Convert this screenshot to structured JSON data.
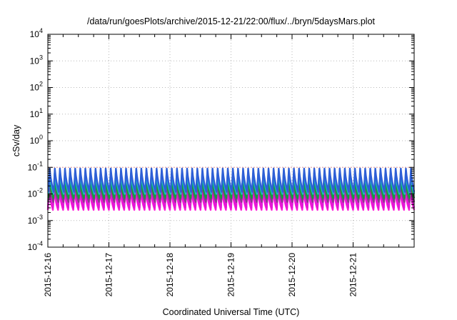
{
  "chart_data": {
    "type": "line",
    "title": "/data/run/goesPlots/archive/2015-12-21/22:00/flux/../bryn/5daysMars.plot",
    "xlabel": "Coordinated Universal Time (UTC)",
    "ylabel": "cSv/day",
    "yscale": "log",
    "ylim": [
      0.0001,
      10000
    ],
    "y_ticks": [
      {
        "base": "10",
        "exp": "-4"
      },
      {
        "base": "10",
        "exp": "-3"
      },
      {
        "base": "10",
        "exp": "-2"
      },
      {
        "base": "10",
        "exp": "-1"
      },
      {
        "base": "10",
        "exp": "0"
      },
      {
        "base": "10",
        "exp": "1"
      },
      {
        "base": "10",
        "exp": "2"
      },
      {
        "base": "10",
        "exp": "3"
      },
      {
        "base": "10",
        "exp": "4"
      }
    ],
    "x_range": [
      "2015-12-16T00:00",
      "2015-12-22T00:00"
    ],
    "x_tick_labels": [
      "2015-12-16",
      "2015-12-17",
      "2015-12-18",
      "2015-12-19",
      "2015-12-20",
      "2015-12-21"
    ],
    "grid": true,
    "legend": "none",
    "pattern": {
      "period_hours": 2,
      "description": "periodic sawtooth dose-rate traces; each cycle peaks then decays",
      "series": [
        {
          "color": "#2e5fd6",
          "peak": 0.09,
          "trough": 0.012
        },
        {
          "color": "#1fb7c9",
          "peak": 0.06,
          "trough": 0.01
        },
        {
          "color": "#159e3b",
          "peak": 0.035,
          "trough": 0.007
        },
        {
          "color": "#8a3a8c",
          "peak": 0.028,
          "trough": 0.005
        },
        {
          "color": "#e317d6",
          "peak": 0.02,
          "trough": 0.003
        },
        {
          "color": "#ff1ad9",
          "peak": 0.015,
          "trough": 0.0025
        }
      ]
    },
    "colors": {
      "grid": "#b8b8b8",
      "axes": "#000000",
      "reference_line": "#e8a0a0"
    }
  }
}
